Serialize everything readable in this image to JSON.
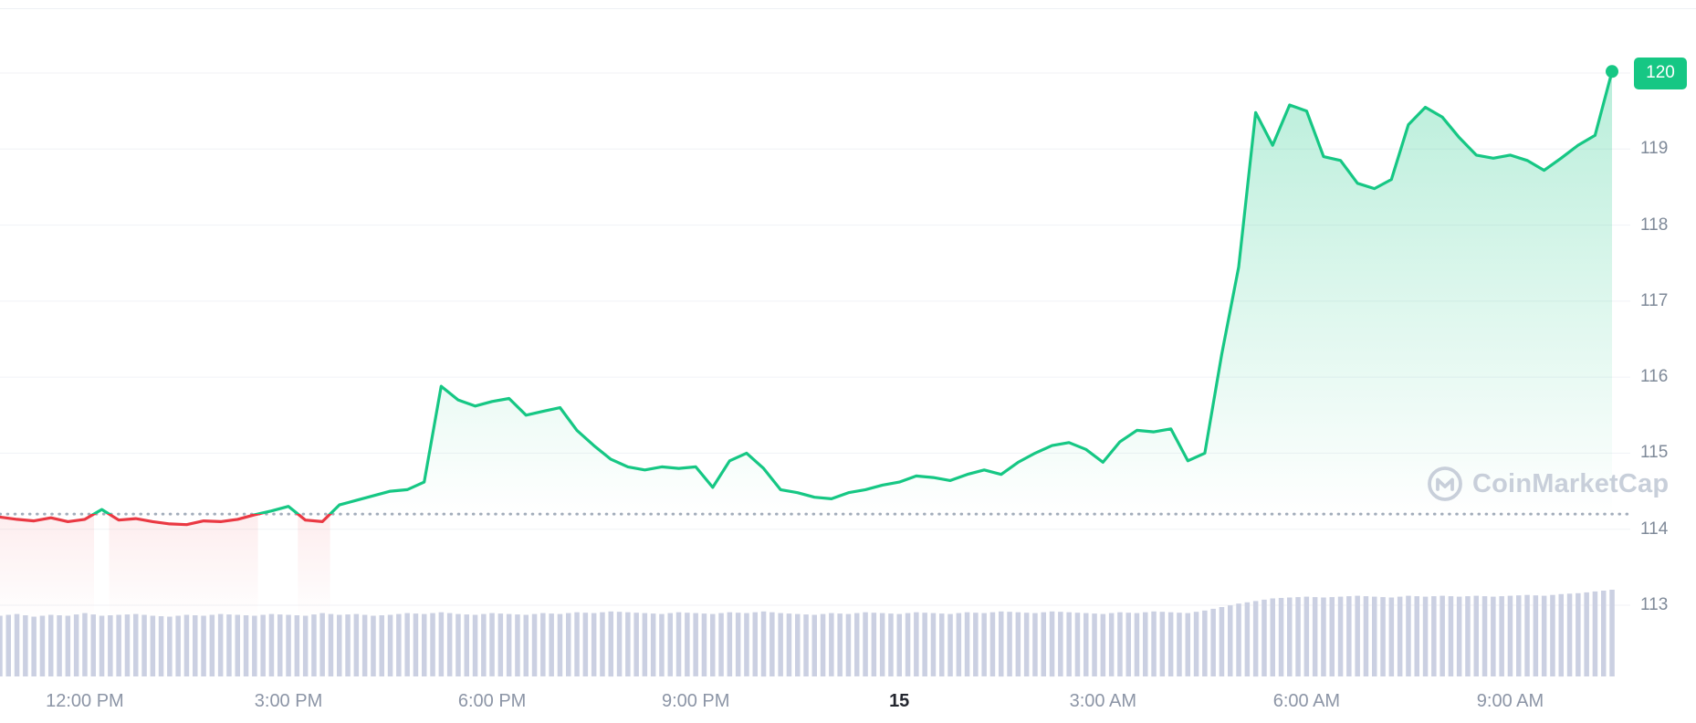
{
  "chart_data": {
    "type": "line",
    "series": [
      {
        "name": "price",
        "start_time": "10:45 AM",
        "interval_minutes": 15,
        "values": [
          114.16,
          114.13,
          114.11,
          114.15,
          114.1,
          114.13,
          114.26,
          114.12,
          114.14,
          114.1,
          114.07,
          114.06,
          114.11,
          114.1,
          114.13,
          114.19,
          114.24,
          114.3,
          114.12,
          114.1,
          114.32,
          114.38,
          114.44,
          114.5,
          114.52,
          114.62,
          115.88,
          115.7,
          115.62,
          115.68,
          115.72,
          115.5,
          115.55,
          115.6,
          115.3,
          115.1,
          114.92,
          114.82,
          114.78,
          114.82,
          114.8,
          114.82,
          114.55,
          114.9,
          115.0,
          114.8,
          114.52,
          114.48,
          114.42,
          114.4,
          114.48,
          114.52,
          114.58,
          114.62,
          114.7,
          114.68,
          114.64,
          114.72,
          114.78,
          114.72,
          114.88,
          115.0,
          115.1,
          115.14,
          115.05,
          114.88,
          115.15,
          115.3,
          115.28,
          115.32,
          114.9,
          115.0,
          116.3,
          117.45,
          119.48,
          119.05,
          119.58,
          119.5,
          118.9,
          118.85,
          118.55,
          118.48,
          118.6,
          119.32,
          119.55,
          119.42,
          119.15,
          118.92,
          118.88,
          118.92,
          118.85,
          118.72,
          118.88,
          119.05,
          119.18,
          120.02
        ]
      }
    ],
    "volumes_relative": [
      0.7,
      0.72,
      0.69,
      0.71,
      0.7,
      0.73,
      0.7,
      0.71,
      0.72,
      0.7,
      0.69,
      0.71,
      0.7,
      0.72,
      0.71,
      0.7,
      0.72,
      0.71,
      0.7,
      0.73,
      0.71,
      0.72,
      0.7,
      0.71,
      0.73,
      0.72,
      0.74,
      0.72,
      0.71,
      0.73,
      0.72,
      0.71,
      0.73,
      0.72,
      0.74,
      0.73,
      0.75,
      0.74,
      0.73,
      0.72,
      0.74,
      0.73,
      0.72,
      0.74,
      0.73,
      0.75,
      0.73,
      0.72,
      0.71,
      0.73,
      0.72,
      0.74,
      0.73,
      0.72,
      0.74,
      0.73,
      0.72,
      0.74,
      0.73,
      0.75,
      0.74,
      0.73,
      0.75,
      0.74,
      0.73,
      0.72,
      0.74,
      0.73,
      0.75,
      0.74,
      0.73,
      0.76,
      0.8,
      0.84,
      0.87,
      0.9,
      0.91,
      0.92,
      0.91,
      0.92,
      0.93,
      0.92,
      0.91,
      0.93,
      0.92,
      0.93,
      0.92,
      0.93,
      0.92,
      0.93,
      0.94,
      0.93,
      0.95,
      0.96,
      0.98,
      1.0
    ],
    "previous_close": 114.2,
    "current_price": 120.0,
    "current_price_label": "120",
    "y_ticks": [
      113,
      114,
      115,
      116,
      117,
      118,
      119,
      120
    ],
    "x_axis": {
      "total_hours": 23.75,
      "ticks": [
        {
          "label": "12:00 PM",
          "t": 1.25,
          "bold": false
        },
        {
          "label": "3:00 PM",
          "t": 4.25,
          "bold": false
        },
        {
          "label": "6:00 PM",
          "t": 7.25,
          "bold": false
        },
        {
          "label": "9:00 PM",
          "t": 10.25,
          "bold": false
        },
        {
          "label": "15",
          "t": 13.25,
          "bold": true
        },
        {
          "label": "3:00 AM",
          "t": 16.25,
          "bold": false
        },
        {
          "label": "6:00 AM",
          "t": 19.25,
          "bold": false
        },
        {
          "label": "9:00 AM",
          "t": 22.25,
          "bold": false
        }
      ]
    },
    "colors": {
      "up": "#16c784",
      "down": "#ea3943",
      "volume": "#cbd0e2",
      "grid": "#f0f2f6",
      "axis_text": "#7f8a99",
      "axis_text_strong": "#23262f",
      "baseline_dotted": "#a3adbb",
      "badge_bg": "#16c784",
      "badge_text": "#ffffff",
      "watermark": "#c8cfda"
    }
  },
  "watermark": {
    "text": "CoinMarketCap"
  }
}
